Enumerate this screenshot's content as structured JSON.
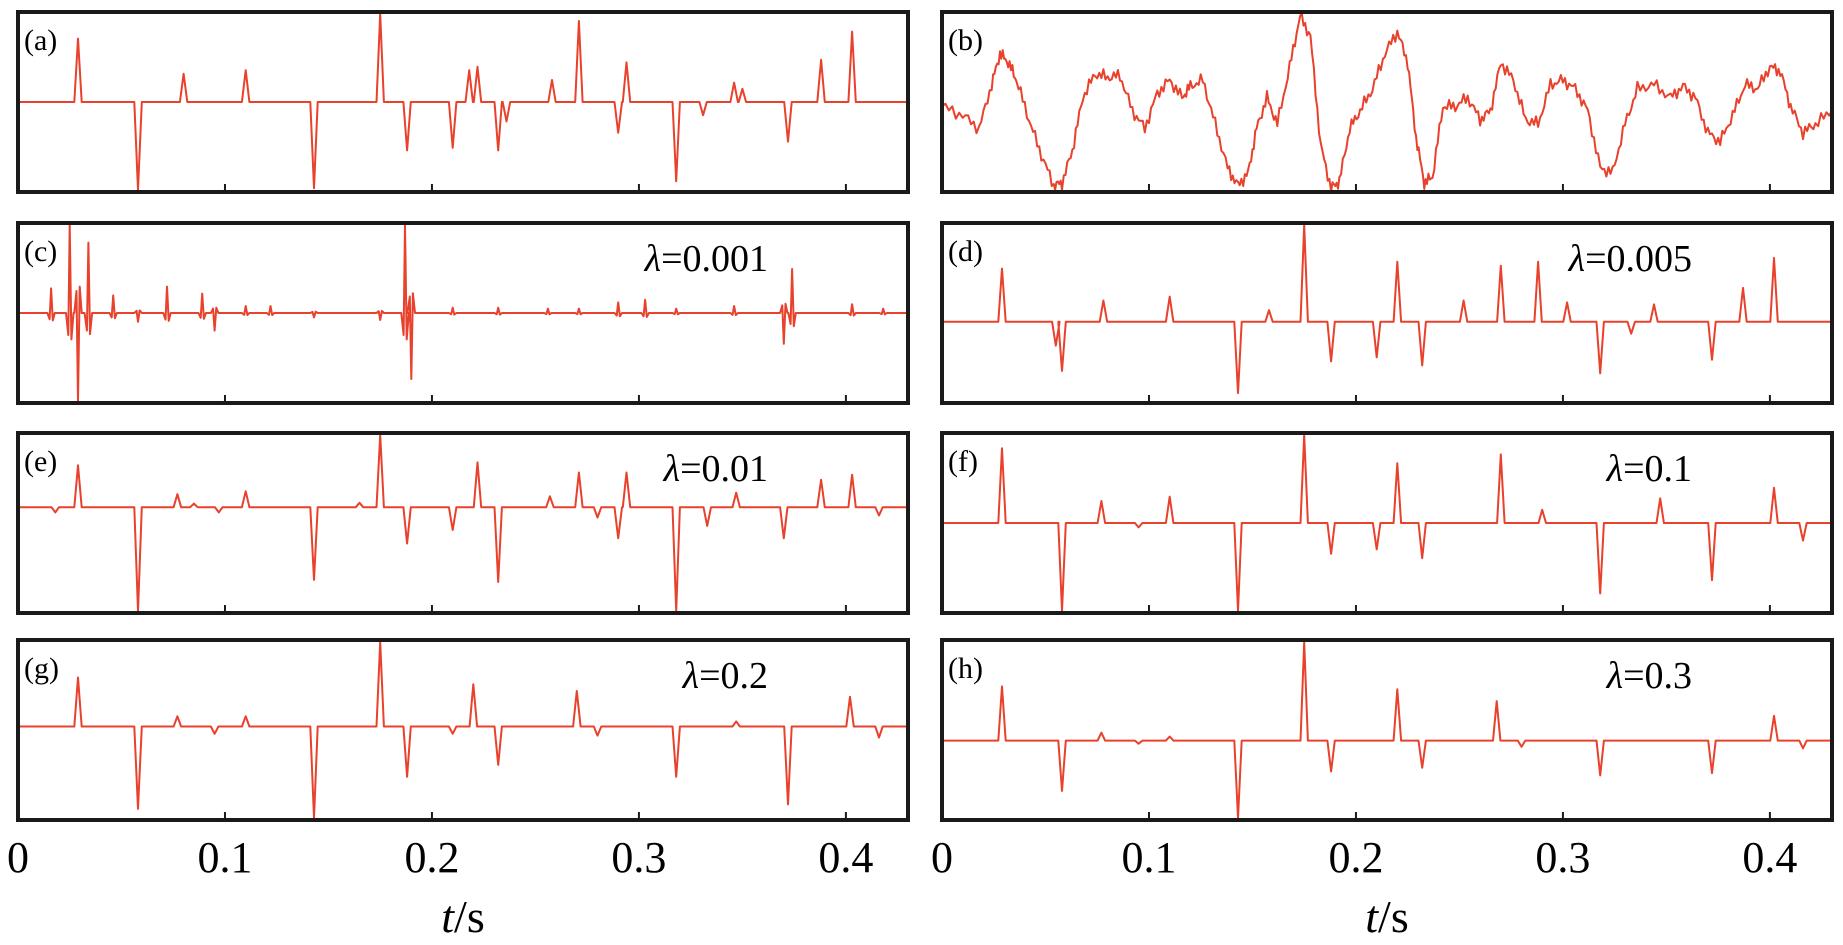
{
  "figure": {
    "line_color": "#e8412c",
    "frame_color": "#1a1a1a"
  },
  "chart_data": [
    {
      "type": "line",
      "panel": "(a)",
      "param": "",
      "xlabel_var": "t",
      "xlabel_unit": "/s",
      "xlim": [
        0,
        0.43
      ],
      "ylim": [
        -1,
        1
      ],
      "x_ticks": [
        "0",
        "0.1",
        "0.2",
        "0.3",
        "0.4"
      ],
      "show_x_ticks": false,
      "baseline": 0,
      "spikes": [
        {
          "t": 0.029,
          "a": 0.72
        },
        {
          "t": 0.058,
          "a": -1.0
        },
        {
          "t": 0.08,
          "a": 0.32
        },
        {
          "t": 0.11,
          "a": 0.36
        },
        {
          "t": 0.143,
          "a": -0.98
        },
        {
          "t": 0.175,
          "a": 1.0
        },
        {
          "t": 0.188,
          "a": -0.55
        },
        {
          "t": 0.21,
          "a": -0.52
        },
        {
          "t": 0.218,
          "a": 0.36
        },
        {
          "t": 0.222,
          "a": 0.4
        },
        {
          "t": 0.232,
          "a": -0.55
        },
        {
          "t": 0.236,
          "a": -0.22
        },
        {
          "t": 0.258,
          "a": 0.25
        },
        {
          "t": 0.271,
          "a": 0.92
        },
        {
          "t": 0.29,
          "a": -0.35
        },
        {
          "t": 0.294,
          "a": 0.45
        },
        {
          "t": 0.318,
          "a": -0.9
        },
        {
          "t": 0.331,
          "a": -0.15
        },
        {
          "t": 0.346,
          "a": 0.22
        },
        {
          "t": 0.35,
          "a": 0.15
        },
        {
          "t": 0.372,
          "a": -0.45
        },
        {
          "t": 0.388,
          "a": 0.48
        },
        {
          "t": 0.403,
          "a": 0.8
        }
      ]
    },
    {
      "type": "line",
      "panel": "(b)",
      "param": "",
      "xlabel_var": "t",
      "xlabel_unit": "/s",
      "xlim": [
        0,
        0.43
      ],
      "ylim": [
        -1,
        1
      ],
      "x_ticks": [
        "0",
        "0.1",
        "0.2",
        "0.3",
        "0.4"
      ],
      "show_x_ticks": false,
      "waveform": [
        [
          0.0,
          -0.05
        ],
        [
          0.01,
          -0.15
        ],
        [
          0.018,
          -0.3
        ],
        [
          0.024,
          0.2
        ],
        [
          0.028,
          0.55
        ],
        [
          0.032,
          0.45
        ],
        [
          0.036,
          0.25
        ],
        [
          0.042,
          -0.2
        ],
        [
          0.048,
          -0.6
        ],
        [
          0.054,
          -0.95
        ],
        [
          0.058,
          -0.92
        ],
        [
          0.063,
          -0.55
        ],
        [
          0.068,
          0.05
        ],
        [
          0.074,
          0.32
        ],
        [
          0.08,
          0.28
        ],
        [
          0.086,
          0.3
        ],
        [
          0.092,
          -0.1
        ],
        [
          0.098,
          -0.3
        ],
        [
          0.104,
          0.1
        ],
        [
          0.11,
          0.25
        ],
        [
          0.116,
          0.05
        ],
        [
          0.12,
          0.18
        ],
        [
          0.126,
          0.25
        ],
        [
          0.132,
          -0.25
        ],
        [
          0.138,
          -0.75
        ],
        [
          0.143,
          -0.95
        ],
        [
          0.148,
          -0.8
        ],
        [
          0.152,
          -0.3
        ],
        [
          0.157,
          0.05
        ],
        [
          0.162,
          -0.25
        ],
        [
          0.168,
          0.4
        ],
        [
          0.173,
          0.98
        ],
        [
          0.178,
          0.75
        ],
        [
          0.183,
          -0.5
        ],
        [
          0.188,
          -0.98
        ],
        [
          0.192,
          -0.9
        ],
        [
          0.197,
          -0.3
        ],
        [
          0.202,
          -0.1
        ],
        [
          0.208,
          0.15
        ],
        [
          0.214,
          0.55
        ],
        [
          0.22,
          0.8
        ],
        [
          0.225,
          0.45
        ],
        [
          0.229,
          -0.4
        ],
        [
          0.233,
          -0.92
        ],
        [
          0.237,
          -0.85
        ],
        [
          0.242,
          -0.05
        ],
        [
          0.248,
          -0.05
        ],
        [
          0.254,
          0.05
        ],
        [
          0.26,
          -0.2
        ],
        [
          0.265,
          -0.1
        ],
        [
          0.27,
          0.45
        ],
        [
          0.276,
          0.25
        ],
        [
          0.282,
          -0.2
        ],
        [
          0.288,
          -0.25
        ],
        [
          0.294,
          0.2
        ],
        [
          0.3,
          0.25
        ],
        [
          0.306,
          0.15
        ],
        [
          0.312,
          -0.1
        ],
        [
          0.318,
          -0.75
        ],
        [
          0.324,
          -0.8
        ],
        [
          0.33,
          -0.25
        ],
        [
          0.336,
          0.15
        ],
        [
          0.344,
          0.2
        ],
        [
          0.352,
          0.05
        ],
        [
          0.358,
          0.18
        ],
        [
          0.364,
          0.05
        ],
        [
          0.37,
          -0.35
        ],
        [
          0.376,
          -0.45
        ],
        [
          0.382,
          -0.15
        ],
        [
          0.388,
          0.2
        ],
        [
          0.394,
          0.15
        ],
        [
          0.4,
          0.4
        ],
        [
          0.405,
          0.35
        ],
        [
          0.41,
          -0.05
        ],
        [
          0.416,
          -0.35
        ],
        [
          0.422,
          -0.25
        ],
        [
          0.43,
          -0.1
        ]
      ]
    },
    {
      "type": "line",
      "panel": "(c)",
      "param_sym": "λ",
      "param": "=0.001",
      "xlabel_var": "t",
      "xlabel_unit": "/s",
      "xlim": [
        0,
        0.43
      ],
      "ylim": [
        -1,
        1
      ],
      "x_ticks": [
        "0",
        "0.1",
        "0.2",
        "0.3",
        "0.4"
      ],
      "show_x_ticks": false,
      "baseline": 0,
      "bipolar": true,
      "spikes": [
        {
          "t": 0.016,
          "a": 0.28
        },
        {
          "t": 0.025,
          "a": 1.0
        },
        {
          "t": 0.029,
          "a": -1.0
        },
        {
          "t": 0.034,
          "a": 0.8
        },
        {
          "t": 0.046,
          "a": 0.2
        },
        {
          "t": 0.058,
          "a": -0.1
        },
        {
          "t": 0.072,
          "a": 0.3
        },
        {
          "t": 0.089,
          "a": 0.22
        },
        {
          "t": 0.095,
          "a": -0.2
        },
        {
          "t": 0.11,
          "a": 0.08
        },
        {
          "t": 0.122,
          "a": 0.08
        },
        {
          "t": 0.143,
          "a": -0.05
        },
        {
          "t": 0.175,
          "a": -0.08
        },
        {
          "t": 0.187,
          "a": 1.0
        },
        {
          "t": 0.19,
          "a": -0.75
        },
        {
          "t": 0.21,
          "a": 0.06
        },
        {
          "t": 0.232,
          "a": 0.06
        },
        {
          "t": 0.256,
          "a": 0.05
        },
        {
          "t": 0.271,
          "a": 0.05
        },
        {
          "t": 0.29,
          "a": 0.12
        },
        {
          "t": 0.303,
          "a": 0.15
        },
        {
          "t": 0.318,
          "a": 0.05
        },
        {
          "t": 0.346,
          "a": 0.08
        },
        {
          "t": 0.37,
          "a": -0.35
        },
        {
          "t": 0.374,
          "a": 0.5
        },
        {
          "t": 0.403,
          "a": 0.1
        },
        {
          "t": 0.418,
          "a": 0.05
        }
      ]
    },
    {
      "type": "line",
      "panel": "(d)",
      "param_sym": "λ",
      "param": "=0.005",
      "xlabel_var": "t",
      "xlabel_unit": "/s",
      "xlim": [
        0,
        0.43
      ],
      "ylim": [
        -1,
        1
      ],
      "x_ticks": [
        "0",
        "0.1",
        "0.2",
        "0.3",
        "0.4"
      ],
      "show_x_ticks": false,
      "baseline": -0.1,
      "spikes": [
        {
          "t": 0.029,
          "a": 0.55
        },
        {
          "t": 0.055,
          "a": -0.3
        },
        {
          "t": 0.058,
          "a": -0.62
        },
        {
          "t": 0.078,
          "a": 0.22
        },
        {
          "t": 0.11,
          "a": 0.26
        },
        {
          "t": 0.143,
          "a": -0.9
        },
        {
          "t": 0.158,
          "a": 0.12
        },
        {
          "t": 0.175,
          "a": 1.0
        },
        {
          "t": 0.188,
          "a": -0.5
        },
        {
          "t": 0.21,
          "a": -0.45
        },
        {
          "t": 0.22,
          "a": 0.62
        },
        {
          "t": 0.232,
          "a": -0.55
        },
        {
          "t": 0.252,
          "a": 0.22
        },
        {
          "t": 0.27,
          "a": 0.58
        },
        {
          "t": 0.288,
          "a": 0.62
        },
        {
          "t": 0.302,
          "a": 0.2
        },
        {
          "t": 0.318,
          "a": -0.65
        },
        {
          "t": 0.333,
          "a": -0.15
        },
        {
          "t": 0.344,
          "a": 0.18
        },
        {
          "t": 0.372,
          "a": -0.48
        },
        {
          "t": 0.387,
          "a": 0.35
        },
        {
          "t": 0.402,
          "a": 0.66
        }
      ]
    },
    {
      "type": "line",
      "panel": "(e)",
      "param_sym": "λ",
      "param": "=0.01",
      "xlabel_var": "t",
      "xlabel_unit": "/s",
      "xlim": [
        0,
        0.43
      ],
      "ylim": [
        -1,
        1
      ],
      "x_ticks": [
        "0",
        "0.1",
        "0.2",
        "0.3",
        "0.4"
      ],
      "show_x_ticks": false,
      "baseline": 0.18,
      "spikes": [
        {
          "t": 0.018,
          "a": -0.05
        },
        {
          "t": 0.029,
          "a": 0.58
        },
        {
          "t": 0.058,
          "a": -1.0
        },
        {
          "t": 0.077,
          "a": 0.18
        },
        {
          "t": 0.085,
          "a": 0.05
        },
        {
          "t": 0.097,
          "a": -0.05
        },
        {
          "t": 0.11,
          "a": 0.22
        },
        {
          "t": 0.143,
          "a": -0.7
        },
        {
          "t": 0.165,
          "a": 0.06
        },
        {
          "t": 0.175,
          "a": 1.0
        },
        {
          "t": 0.188,
          "a": -0.35
        },
        {
          "t": 0.21,
          "a": -0.22
        },
        {
          "t": 0.222,
          "a": 0.62
        },
        {
          "t": 0.232,
          "a": -0.72
        },
        {
          "t": 0.257,
          "a": 0.15
        },
        {
          "t": 0.271,
          "a": 0.48
        },
        {
          "t": 0.28,
          "a": -0.1
        },
        {
          "t": 0.29,
          "a": -0.3
        },
        {
          "t": 0.294,
          "a": 0.48
        },
        {
          "t": 0.318,
          "a": -1.0
        },
        {
          "t": 0.333,
          "a": -0.18
        },
        {
          "t": 0.347,
          "a": 0.2
        },
        {
          "t": 0.37,
          "a": -0.3
        },
        {
          "t": 0.388,
          "a": 0.38
        },
        {
          "t": 0.403,
          "a": 0.45
        },
        {
          "t": 0.416,
          "a": -0.08
        }
      ]
    },
    {
      "type": "line",
      "panel": "(f)",
      "param_sym": "λ",
      "param": "=0.1",
      "xlabel_var": "t",
      "xlabel_unit": "/s",
      "xlim": [
        0,
        0.43
      ],
      "ylim": [
        -1,
        1
      ],
      "x_ticks": [
        "0",
        "0.1",
        "0.2",
        "0.3",
        "0.4"
      ],
      "show_x_ticks": false,
      "baseline": 0.0,
      "spikes": [
        {
          "t": 0.029,
          "a": 0.85
        },
        {
          "t": 0.058,
          "a": -1.0
        },
        {
          "t": 0.077,
          "a": 0.25
        },
        {
          "t": 0.095,
          "a": -0.05
        },
        {
          "t": 0.11,
          "a": 0.3
        },
        {
          "t": 0.143,
          "a": -1.0
        },
        {
          "t": 0.175,
          "a": 1.0
        },
        {
          "t": 0.188,
          "a": -0.35
        },
        {
          "t": 0.21,
          "a": -0.3
        },
        {
          "t": 0.22,
          "a": 0.68
        },
        {
          "t": 0.232,
          "a": -0.4
        },
        {
          "t": 0.27,
          "a": 0.78
        },
        {
          "t": 0.29,
          "a": 0.15
        },
        {
          "t": 0.318,
          "a": -0.8
        },
        {
          "t": 0.347,
          "a": 0.28
        },
        {
          "t": 0.372,
          "a": -0.65
        },
        {
          "t": 0.402,
          "a": 0.4
        },
        {
          "t": 0.416,
          "a": -0.2
        }
      ]
    },
    {
      "type": "line",
      "panel": "(g)",
      "param_sym": "λ",
      "param": "=0.2",
      "xlabel_var": "t",
      "xlabel_unit": "/s",
      "xlim": [
        0,
        0.43
      ],
      "ylim": [
        -1,
        1
      ],
      "x_ticks": [
        "0",
        "0.1",
        "0.2",
        "0.3",
        "0.4"
      ],
      "show_x_ticks": true,
      "baseline": 0.04,
      "spikes": [
        {
          "t": 0.029,
          "a": 0.58
        },
        {
          "t": 0.058,
          "a": -0.9
        },
        {
          "t": 0.077,
          "a": 0.12
        },
        {
          "t": 0.095,
          "a": -0.08
        },
        {
          "t": 0.11,
          "a": 0.12
        },
        {
          "t": 0.143,
          "a": -1.0
        },
        {
          "t": 0.175,
          "a": 1.0
        },
        {
          "t": 0.188,
          "a": -0.55
        },
        {
          "t": 0.21,
          "a": -0.08
        },
        {
          "t": 0.22,
          "a": 0.5
        },
        {
          "t": 0.232,
          "a": -0.42
        },
        {
          "t": 0.27,
          "a": 0.42
        },
        {
          "t": 0.28,
          "a": -0.1
        },
        {
          "t": 0.318,
          "a": -0.55
        },
        {
          "t": 0.347,
          "a": 0.06
        },
        {
          "t": 0.372,
          "a": -0.85
        },
        {
          "t": 0.402,
          "a": 0.35
        },
        {
          "t": 0.416,
          "a": -0.12
        }
      ]
    },
    {
      "type": "line",
      "panel": "(h)",
      "param_sym": "λ",
      "param": "=0.3",
      "xlabel_var": "t",
      "xlabel_unit": "/s",
      "xlim": [
        0,
        0.43
      ],
      "ylim": [
        -1,
        1
      ],
      "x_ticks": [
        "0",
        "0.1",
        "0.2",
        "0.3",
        "0.4"
      ],
      "show_x_ticks": true,
      "baseline": -0.12,
      "spikes": [
        {
          "t": 0.029,
          "a": 0.55
        },
        {
          "t": 0.058,
          "a": -0.65
        },
        {
          "t": 0.077,
          "a": 0.08
        },
        {
          "t": 0.095,
          "a": -0.04
        },
        {
          "t": 0.11,
          "a": 0.04
        },
        {
          "t": 0.143,
          "a": -1.0
        },
        {
          "t": 0.175,
          "a": 1.0
        },
        {
          "t": 0.188,
          "a": -0.4
        },
        {
          "t": 0.22,
          "a": 0.52
        },
        {
          "t": 0.232,
          "a": -0.35
        },
        {
          "t": 0.268,
          "a": 0.4
        },
        {
          "t": 0.28,
          "a": -0.08
        },
        {
          "t": 0.318,
          "a": -0.45
        },
        {
          "t": 0.372,
          "a": -0.42
        },
        {
          "t": 0.402,
          "a": 0.25
        },
        {
          "t": 0.416,
          "a": -0.1
        }
      ]
    }
  ]
}
